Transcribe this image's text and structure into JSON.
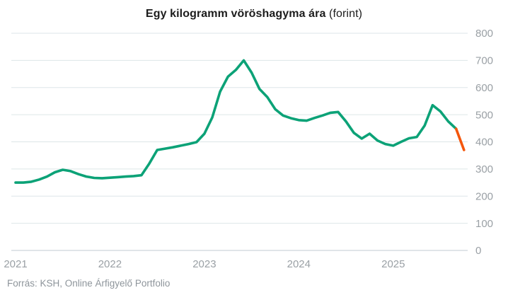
{
  "title": {
    "main": "Egy kilogramm vöröshagyma ára",
    "suffix": " (forint)"
  },
  "footer": {
    "source": "Forrás: KSH, Online Árfigyelő Portfolio"
  },
  "colors": {
    "line_green": "#0ca277",
    "line_orange": "#f4560c",
    "grid": "#dde6e8",
    "axis": "#c2cbd0",
    "tick_text": "#9aa0a5",
    "title_text": "#1c1c1c",
    "source_text": "#8e959b",
    "background": "#ffffff"
  },
  "chart_data": {
    "type": "line",
    "title": "Egy kilogramm vöröshagyma ára (forint)",
    "xlabel": "",
    "ylabel": "forint",
    "frequency": "monthly",
    "x_start": "2021-01",
    "x_end": "2025-10",
    "grid": true,
    "legend": "none",
    "y_axis_position": "right",
    "ylim": [
      0,
      800
    ],
    "y_ticks": [
      0,
      100,
      200,
      300,
      400,
      500,
      600,
      700,
      800
    ],
    "x_tick_labels": [
      "2021",
      "2022",
      "2023",
      "2024",
      "2025"
    ],
    "categories": [
      "2021-01",
      "2021-02",
      "2021-03",
      "2021-04",
      "2021-05",
      "2021-06",
      "2021-07",
      "2021-08",
      "2021-09",
      "2021-10",
      "2021-11",
      "2021-12",
      "2022-01",
      "2022-02",
      "2022-03",
      "2022-04",
      "2022-05",
      "2022-06",
      "2022-07",
      "2022-08",
      "2022-09",
      "2022-10",
      "2022-11",
      "2022-12",
      "2023-01",
      "2023-02",
      "2023-03",
      "2023-04",
      "2023-05",
      "2023-06",
      "2023-07",
      "2023-08",
      "2023-09",
      "2023-10",
      "2023-11",
      "2023-12",
      "2024-01",
      "2024-02",
      "2024-03",
      "2024-04",
      "2024-05",
      "2024-06",
      "2024-07",
      "2024-08",
      "2024-09",
      "2024-10",
      "2024-11",
      "2024-12",
      "2025-01",
      "2025-02",
      "2025-03",
      "2025-04",
      "2025-05",
      "2025-06",
      "2025-07",
      "2025-08",
      "2025-09",
      "2025-10"
    ],
    "series": [
      {
        "name": "Egy kilogramm vöröshagyma ára (forint)",
        "color": "#0ca277",
        "recent_segment_color": "#f4560c",
        "recent_segment_start_index": 56,
        "values": [
          250,
          250,
          253,
          261,
          272,
          288,
          297,
          292,
          281,
          272,
          267,
          266,
          268,
          270,
          272,
          274,
          277,
          320,
          370,
          375,
          380,
          386,
          392,
          399,
          430,
          490,
          585,
          640,
          665,
          700,
          655,
          595,
          565,
          520,
          497,
          487,
          480,
          478,
          488,
          497,
          507,
          510,
          475,
          433,
          412,
          430,
          405,
          392,
          386,
          400,
          413,
          418,
          460,
          535,
          512,
          475,
          448,
          370
        ]
      }
    ]
  }
}
